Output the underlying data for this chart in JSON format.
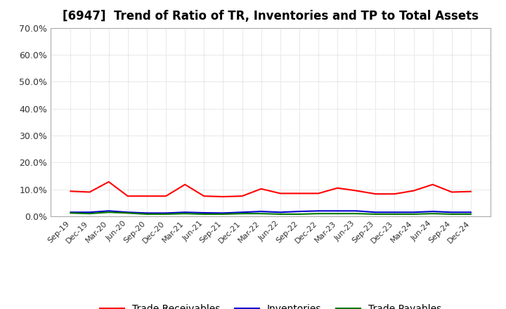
{
  "title": "[6947]  Trend of Ratio of TR, Inventories and TP to Total Assets",
  "x_labels": [
    "Sep-19",
    "Dec-19",
    "Mar-20",
    "Jun-20",
    "Sep-20",
    "Dec-20",
    "Mar-21",
    "Jun-21",
    "Sep-21",
    "Dec-21",
    "Mar-22",
    "Jun-22",
    "Sep-22",
    "Dec-22",
    "Mar-23",
    "Jun-23",
    "Sep-23",
    "Dec-23",
    "Mar-24",
    "Jun-24",
    "Sep-24",
    "Dec-24"
  ],
  "trade_receivables": [
    0.093,
    0.09,
    0.128,
    0.075,
    0.075,
    0.075,
    0.118,
    0.075,
    0.073,
    0.075,
    0.102,
    0.085,
    0.085,
    0.085,
    0.105,
    0.095,
    0.083,
    0.083,
    0.095,
    0.118,
    0.09,
    0.092
  ],
  "inventories": [
    0.015,
    0.015,
    0.02,
    0.015,
    0.012,
    0.012,
    0.015,
    0.013,
    0.012,
    0.015,
    0.018,
    0.015,
    0.018,
    0.02,
    0.02,
    0.02,
    0.015,
    0.015,
    0.015,
    0.018,
    0.015,
    0.015
  ],
  "trade_payables": [
    0.012,
    0.01,
    0.015,
    0.012,
    0.008,
    0.008,
    0.01,
    0.008,
    0.008,
    0.01,
    0.01,
    0.008,
    0.008,
    0.01,
    0.01,
    0.01,
    0.008,
    0.008,
    0.008,
    0.01,
    0.008,
    0.008
  ],
  "tr_color": "#FF0000",
  "inv_color": "#0000CC",
  "tp_color": "#007700",
  "ylim": [
    0.0,
    0.7
  ],
  "yticks": [
    0.0,
    0.1,
    0.2,
    0.3,
    0.4,
    0.5,
    0.6,
    0.7
  ],
  "ytick_labels": [
    "0.0%",
    "10.0%",
    "20.0%",
    "30.0%",
    "40.0%",
    "50.0%",
    "60.0%",
    "70.0%"
  ],
  "background_color": "#FFFFFF",
  "grid_color": "#BBBBBB",
  "legend_labels": [
    "Trade Receivables",
    "Inventories",
    "Trade Payables"
  ],
  "title_fontsize": 12,
  "tick_fontsize": 9,
  "legend_fontsize": 10
}
